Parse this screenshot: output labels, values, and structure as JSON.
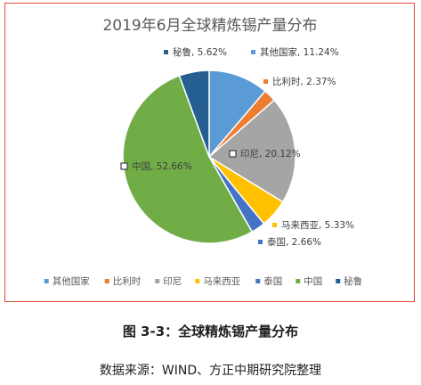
{
  "chart_data": {
    "type": "pie",
    "title": "2019年6月全球精炼锡产量分布",
    "categories": [
      "其他国家",
      "比利时",
      "印尼",
      "马来西亚",
      "泰国",
      "中国",
      "秘鲁"
    ],
    "values": [
      11.24,
      2.37,
      20.12,
      5.33,
      2.66,
      52.66,
      5.62
    ],
    "data_labels": [
      "其他国家, 11.24%",
      "比利时, 2.37%",
      "印尼, 20.12%",
      "马来西亚, 5.33%",
      "泰国, 2.66%",
      "中国, 52.66%",
      "秘鲁, 5.62%"
    ],
    "colors": [
      "#5b9bd5",
      "#ed7d31",
      "#a5a5a5",
      "#ffc000",
      "#4472c4",
      "#70ad47",
      "#255e91"
    ],
    "legend": "bottom",
    "start_angle_deg": 0,
    "direction": "clockwise"
  },
  "caption": "图 3-3：全球精炼锡产量分布",
  "source": "数据来源：WIND、方正中期研究院整理"
}
